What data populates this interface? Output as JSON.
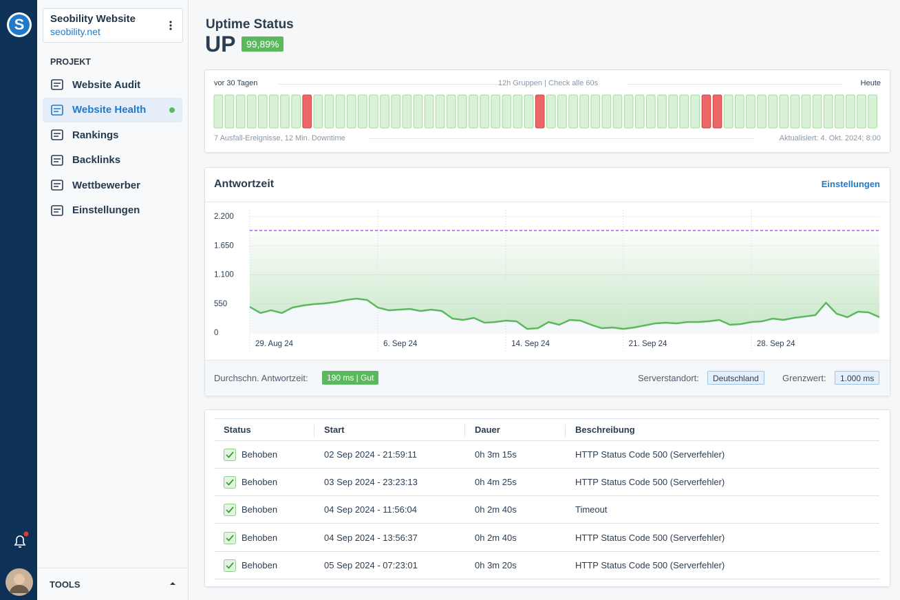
{
  "sidebar": {
    "project_name": "Seobility Website",
    "project_url": "seobility.net",
    "section": "PROJEKT",
    "nav": [
      "Website Audit",
      "Website Health",
      "Rankings",
      "Backlinks",
      "Wettbewerber",
      "Einstellungen"
    ],
    "tools": "TOOLS"
  },
  "header": {
    "title": "Uptime Status",
    "status": "UP",
    "uptime": "99,89%"
  },
  "uptime": {
    "left_label": "vor 30 Tagen",
    "center_label": "12h Gruppen | Check alle 60s",
    "right_label": "Heute",
    "bars": [
      1,
      1,
      1,
      1,
      1,
      1,
      1,
      1,
      0,
      1,
      1,
      1,
      1,
      1,
      1,
      1,
      1,
      1,
      1,
      1,
      1,
      1,
      1,
      1,
      1,
      1,
      1,
      1,
      1,
      0,
      1,
      1,
      1,
      1,
      1,
      1,
      1,
      1,
      1,
      1,
      1,
      1,
      1,
      1,
      0,
      0,
      1,
      1,
      1,
      1,
      1,
      1,
      1,
      1,
      1,
      1,
      1,
      1,
      1,
      1
    ],
    "up_color": "#d9f2d7",
    "down_color": "#ec6868",
    "summary": "7 Ausfall-Ereignisse, 12 Min. Downtime",
    "updated": "Aktualisiert: 4. Okt. 2024; 8:00"
  },
  "response": {
    "title": "Antwortzeit",
    "settings": "Einstellungen",
    "avg_label": "Durchschn. Antwortzeit:",
    "avg_value": "190 ms | Gut",
    "location_label": "Serverstandort:",
    "location": "Deutschland",
    "limit_label": "Grenzwert:",
    "limit": "1.000 ms"
  },
  "chart_data": {
    "type": "line",
    "categories": [
      "29. Aug 24",
      null,
      null,
      null,
      null,
      null,
      null,
      null,
      null,
      null,
      null,
      null,
      "6. Sep 24",
      null,
      null,
      null,
      null,
      null,
      null,
      null,
      null,
      null,
      null,
      null,
      "14. Sep 24",
      null,
      null,
      null,
      null,
      null,
      null,
      null,
      null,
      null,
      null,
      "21. Sep 24",
      null,
      null,
      null,
      null,
      null,
      null,
      null,
      null,
      null,
      null,
      null,
      "28. Sep 24",
      null,
      null,
      null,
      null,
      null,
      null,
      null,
      null,
      null,
      null,
      null,
      null
    ],
    "values": [
      495,
      378,
      430,
      378,
      482,
      521,
      547,
      560,
      586,
      625,
      651,
      625,
      482,
      430,
      443,
      456,
      417,
      443,
      417,
      273,
      247,
      286,
      195,
      208,
      234,
      221,
      78,
      91,
      208,
      156,
      247,
      234,
      156,
      91,
      104,
      78,
      104,
      143,
      182,
      195,
      182,
      208,
      208,
      221,
      247,
      156,
      169,
      208,
      221,
      273,
      247,
      286,
      312,
      338,
      573,
      365,
      299,
      404,
      391,
      299
    ],
    "color": "#5cb85c",
    "threshold": 1940,
    "threshold_color": "#a855f7",
    "ylim": [
      0,
      2200
    ],
    "yticks": [
      0,
      550,
      {
        "value": 1100,
        "label": "1.100"
      },
      {
        "value": 1650,
        "label": "1.650"
      },
      {
        "value": 2200,
        "label": "2.200"
      }
    ],
    "grid": true
  },
  "table": {
    "headers": [
      "Status",
      "Start",
      "Dauer",
      "Beschreibung"
    ],
    "rows": [
      [
        "Behoben",
        "02 Sep 2024 - 21:59:11",
        "0h 3m 15s",
        "HTTP Status Code 500 (Serverfehler)"
      ],
      [
        "Behoben",
        "03 Sep 2024 - 23:23:13",
        "0h 4m 25s",
        "HTTP Status Code 500 (Serverfehler)"
      ],
      [
        "Behoben",
        "04 Sep 2024 - 11:56:04",
        "0h 2m 40s",
        "Timeout"
      ],
      [
        "Behoben",
        "04 Sep 2024 - 13:56:37",
        "0h 2m 40s",
        "HTTP Status Code 500 (Serverfehler)"
      ],
      [
        "Behoben",
        "05 Sep 2024 - 07:23:01",
        "0h 3m 20s",
        "HTTP Status Code 500 (Serverfehler)"
      ]
    ]
  }
}
